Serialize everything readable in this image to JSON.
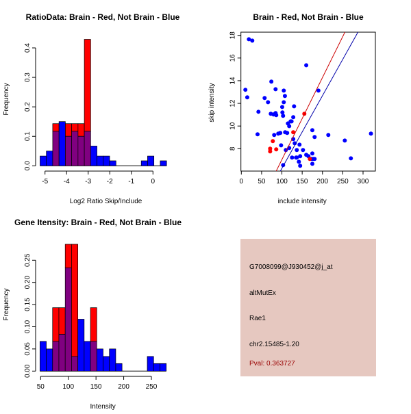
{
  "colors": {
    "red": "#ff0000",
    "blue": "#0000ff",
    "overlap": "#800080",
    "panel": "#e6c8c0",
    "pval": "#990000"
  },
  "chart_data": [
    {
      "type": "bar",
      "title": "RatioData: Brain - Red, Not Brain - Blue",
      "xlabel": "Log2 Ratio Skip/Include",
      "ylabel": "Frequency",
      "xlim": [
        -5.4,
        0.8
      ],
      "ylim": [
        0,
        0.43
      ],
      "xticks": [
        -5,
        -4,
        -3,
        -2,
        -1,
        0
      ],
      "yticks": [
        "0.0",
        "0.1",
        "0.2",
        "0.3",
        "0.4"
      ],
      "bin_start": -5.23,
      "bin_width": 0.293,
      "series": [
        {
          "name": "Not Brain",
          "color": "blue",
          "values": [
            0.033,
            0.05,
            0.117,
            0.15,
            0.1,
            0.117,
            0.1,
            0.117,
            0.067,
            0.033,
            0.033,
            0.017,
            0,
            0,
            0,
            0,
            0.017,
            0.033,
            0,
            0.017
          ]
        },
        {
          "name": "Brain",
          "color": "red",
          "values": [
            0,
            0,
            0.143,
            0,
            0.143,
            0.143,
            0.143,
            0.429,
            0,
            0,
            0,
            0,
            0,
            0,
            0,
            0,
            0,
            0,
            0,
            0
          ]
        }
      ]
    },
    {
      "type": "scatter",
      "title": "Brain - Red, Not Brain - Blue",
      "xlabel": "include intensity",
      "ylabel": "skip intensity",
      "xlim": [
        -1,
        330
      ],
      "ylim": [
        6.03,
        18.28
      ],
      "xticks": [
        0,
        50,
        100,
        150,
        200,
        250,
        300
      ],
      "yticks": [
        8,
        10,
        12,
        14,
        16,
        18
      ],
      "series": [
        {
          "name": "Not Brain",
          "color": "blue",
          "points": [
            [
              18.6,
              17.66
            ],
            [
              27,
              17.54
            ],
            [
              10,
              13.2
            ],
            [
              14.6,
              12.53
            ],
            [
              160,
              15.36
            ],
            [
              74,
              13.92
            ],
            [
              84.4,
              13.25
            ],
            [
              104.6,
              13.13
            ],
            [
              107.4,
              12.65
            ],
            [
              104.6,
              12.1
            ],
            [
              57.4,
              12.47
            ],
            [
              65.8,
              12.1
            ],
            [
              190,
              13.13
            ],
            [
              42.2,
              11.26
            ],
            [
              100.7,
              11.68
            ],
            [
              130,
              11.74
            ],
            [
              72.6,
              11.08
            ],
            [
              79.4,
              11.02
            ],
            [
              84.4,
              11.14
            ],
            [
              86,
              10.96
            ],
            [
              101.3,
              11.2
            ],
            [
              102.9,
              10.9
            ],
            [
              128,
              10.78
            ],
            [
              114.8,
              10.23
            ],
            [
              118,
              9.99
            ],
            [
              121.5,
              10.41
            ],
            [
              123.8,
              10.41
            ],
            [
              40,
              9.27
            ],
            [
              81,
              9.21
            ],
            [
              91,
              9.33
            ],
            [
              96,
              9.39
            ],
            [
              108,
              9.45
            ],
            [
              113,
              9.39
            ],
            [
              128,
              8.85
            ],
            [
              131.6,
              8.48
            ],
            [
              143.4,
              8.36
            ],
            [
              98,
              8.3
            ],
            [
              118,
              8.06
            ],
            [
              109.7,
              7.88
            ],
            [
              136.7,
              7.88
            ],
            [
              152,
              7.88
            ],
            [
              125,
              7.22
            ],
            [
              135,
              7.22
            ],
            [
              136.7,
              7.22
            ],
            [
              145,
              7.34
            ],
            [
              160,
              7.46
            ],
            [
              165.4,
              7.34
            ],
            [
              141.8,
              6.85
            ],
            [
              145,
              6.49
            ],
            [
              103,
              6.55
            ],
            [
              175,
              9.63
            ],
            [
              180.6,
              9.03
            ],
            [
              214.4,
              9.21
            ],
            [
              255,
              8.72
            ],
            [
              175,
              7.58
            ],
            [
              172.7,
              7.1
            ],
            [
              177,
              7.1
            ],
            [
              180.6,
              7.1
            ],
            [
              175,
              6.67
            ],
            [
              270,
              7.15
            ],
            [
              319.5,
              9.33
            ]
          ]
        },
        {
          "name": "Brain",
          "color": "red",
          "points": [
            [
              155.3,
              11.08
            ],
            [
              128,
              9.45
            ],
            [
              77.6,
              8.67
            ],
            [
              71,
              8.0
            ],
            [
              71,
              7.76
            ],
            [
              86,
              7.94
            ],
            [
              168.8,
              7.1
            ]
          ]
        }
      ],
      "lines": [
        {
          "color": "red",
          "intercept": -0.2,
          "slope": 0.0724
        },
        {
          "color": "blue",
          "intercept": -0.14,
          "slope": 0.0641
        }
      ]
    },
    {
      "type": "bar",
      "title": "Gene Itensity: Brain - Red, Not Brain - Blue",
      "xlabel": "Intensity",
      "ylabel": "Frequency",
      "xlim": [
        45,
        282
      ],
      "ylim": [
        0,
        0.29
      ],
      "xticks": [
        50,
        100,
        150,
        200,
        250
      ],
      "yticks": [
        "0.00",
        "0.05",
        "0.10",
        "0.15",
        "0.20",
        "0.25"
      ],
      "bin_start": 48.8,
      "bin_width": 11.4,
      "series": [
        {
          "name": "Not Brain",
          "color": "blue",
          "values": [
            0.067,
            0.05,
            0.067,
            0.083,
            0.233,
            0.033,
            0.117,
            0.067,
            0.067,
            0.05,
            0.033,
            0.05,
            0.017,
            0,
            0,
            0,
            0,
            0.033,
            0.017,
            0.017
          ]
        },
        {
          "name": "Brain",
          "color": "red",
          "values": [
            0,
            0,
            0.143,
            0.143,
            0.286,
            0.286,
            0,
            0,
            0.143,
            0,
            0,
            0,
            0,
            0,
            0,
            0,
            0,
            0,
            0,
            0
          ]
        }
      ]
    }
  ],
  "info": {
    "probe": "G7008099@J930452@j_at",
    "type": "altMutEx",
    "gene": "Rae1",
    "location": "chr2.15485-1.20",
    "pval": "Pval: 0.363727"
  }
}
